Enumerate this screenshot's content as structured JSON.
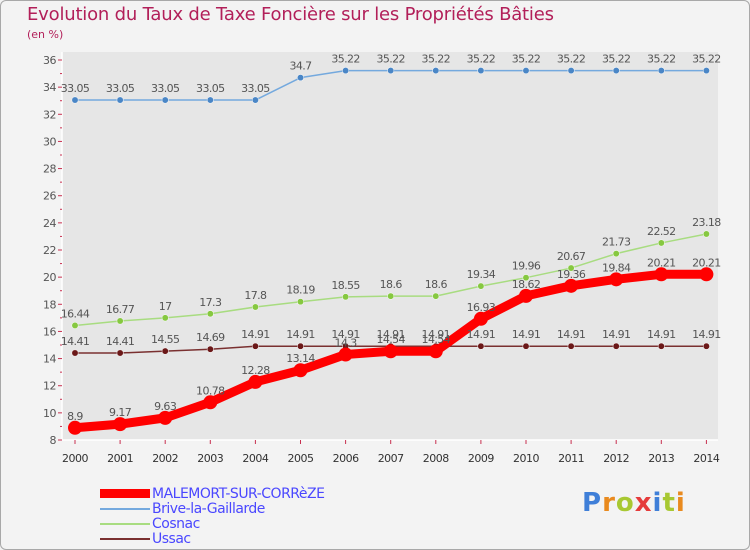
{
  "title": "Evolution du Taux de Taxe Foncière sur les Propriétés Bâties",
  "unit_label": "(en %)",
  "logo_text": "Proxiti",
  "colors": {
    "title": "#b21f59",
    "legend_text": "#4a47ff",
    "axis": "#ffffff",
    "tick_text": "#555555"
  },
  "chart_data": {
    "type": "line",
    "title": "Evolution du Taux de Taxe Foncière sur les Propriétés Bâties",
    "ylabel": "(en %)",
    "xlabel": "",
    "x": [
      "2000",
      "2001",
      "2002",
      "2003",
      "2004",
      "2005",
      "2006",
      "2007",
      "2008",
      "2009",
      "2010",
      "2011",
      "2012",
      "2013",
      "2014"
    ],
    "ylim": [
      8,
      36
    ],
    "yticks": [
      "8",
      "10",
      "12",
      "14",
      "16",
      "18",
      "20",
      "22",
      "24",
      "26",
      "28",
      "30",
      "32",
      "34",
      "36"
    ],
    "grid": false,
    "legend_position": "bottom-left",
    "series": [
      {
        "name": "MALEMORT-SUR-CORRèZE",
        "color": "#ff0000",
        "values": [
          8.9,
          9.17,
          9.63,
          10.78,
          12.28,
          13.14,
          14.3,
          14.54,
          14.54,
          16.93,
          18.62,
          19.36,
          19.84,
          20.21,
          20.21
        ],
        "labels": [
          "8.9",
          "9.17",
          "9.63",
          "10.78",
          "12.28",
          "13.14",
          "14.3",
          "14.54",
          "14.54",
          "16.93",
          "18.62",
          "19.36",
          "19.84",
          "20.21",
          "20.21"
        ],
        "marker_color": "#ff0000"
      },
      {
        "name": "Brive-la-Gaillarde",
        "color": "#74a9de",
        "values": [
          33.05,
          33.05,
          33.05,
          33.05,
          33.05,
          34.7,
          35.22,
          35.22,
          35.22,
          35.22,
          35.22,
          35.22,
          35.22,
          35.22,
          35.22
        ],
        "labels": [
          "33.05",
          "33.05",
          "33.05",
          "33.05",
          "33.05",
          "34.7",
          "35.22",
          "35.22",
          "35.22",
          "35.22",
          "35.22",
          "35.22",
          "35.22",
          "35.22",
          "35.22"
        ],
        "marker_color": "#4a86c6"
      },
      {
        "name": "Cosnac",
        "color": "#a8dc80",
        "values": [
          16.44,
          16.77,
          17.0,
          17.3,
          17.8,
          18.19,
          18.55,
          18.6,
          18.6,
          19.34,
          19.96,
          20.67,
          21.73,
          22.52,
          23.18
        ],
        "labels": [
          "16.44",
          "16.77",
          "17",
          "17.3",
          "17.8",
          "18.19",
          "18.55",
          "18.6",
          "18.6",
          "19.34",
          "19.96",
          "20.67",
          "21.73",
          "22.52",
          "23.18"
        ],
        "marker_color": "#86c840"
      },
      {
        "name": "Ussac",
        "color": "#7a3030",
        "values": [
          14.41,
          14.41,
          14.55,
          14.69,
          14.91,
          14.91,
          14.91,
          14.91,
          14.91,
          14.91,
          14.91,
          14.91,
          14.91,
          14.91,
          14.91
        ],
        "labels": [
          "14.41",
          "14.41",
          "14.55",
          "14.69",
          "14.91",
          "14.91",
          "14.91",
          "14.91",
          "14.91",
          "14.91",
          "14.91",
          "14.91",
          "14.91",
          "14.91",
          "14.91"
        ],
        "marker_color": "#6b1818"
      }
    ]
  }
}
